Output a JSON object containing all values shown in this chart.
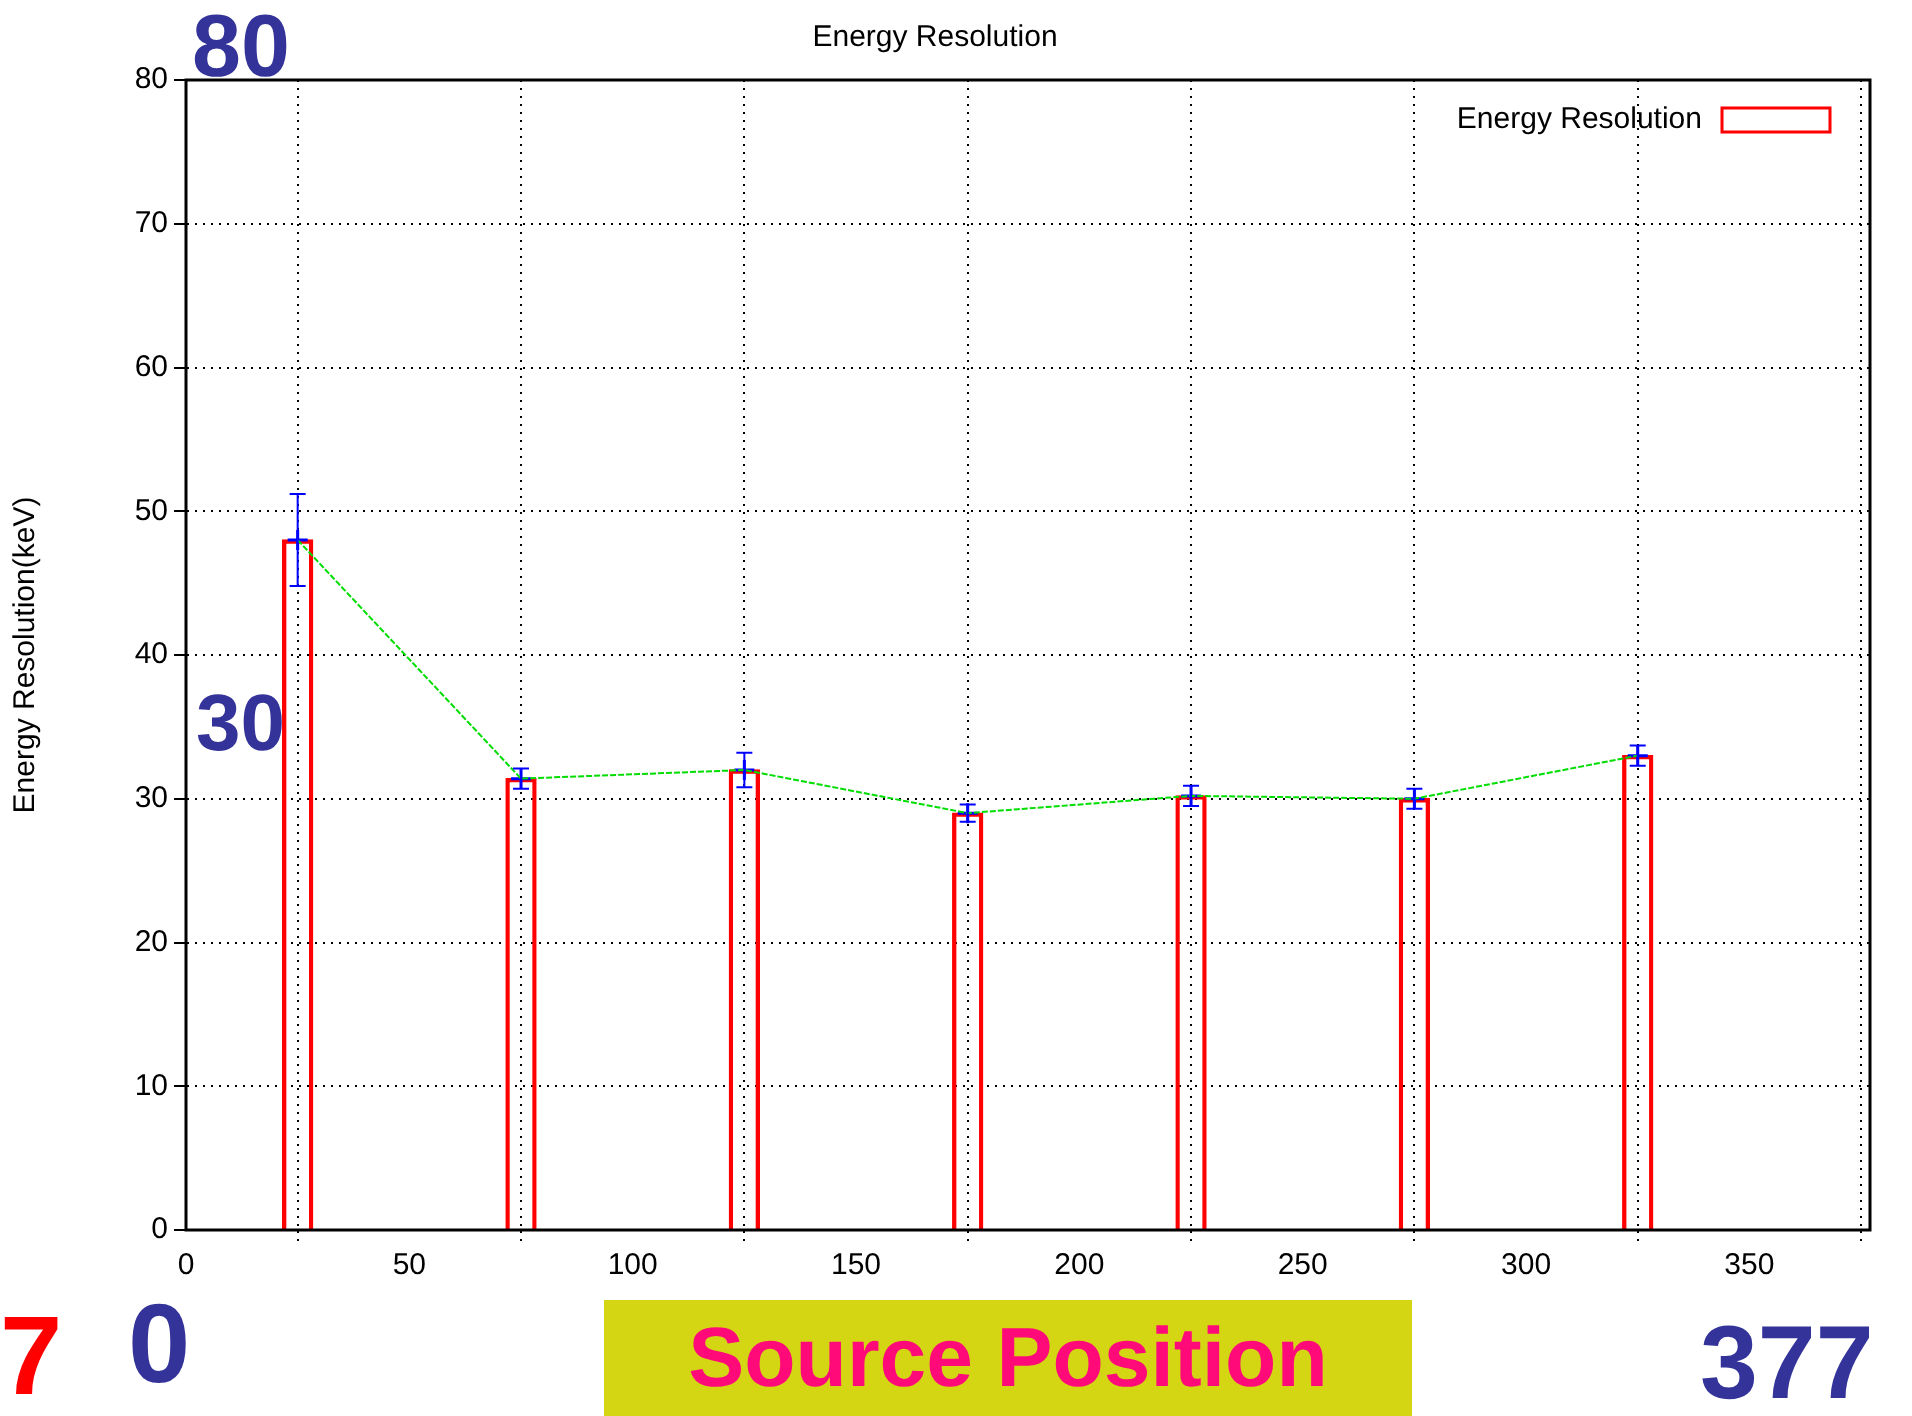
{
  "chart_data": {
    "type": "bar",
    "title": "Energy Resolution",
    "xlabel": "Source Position",
    "ylabel": "Energy Resolution(keV)",
    "x": [
      25,
      75,
      125,
      175,
      225,
      275,
      325
    ],
    "series": [
      {
        "name": "Energy Resolution",
        "color": "#ff0000",
        "values": [
          48,
          31.4,
          32,
          29,
          30.2,
          30,
          33
        ]
      },
      {
        "type": "line",
        "color": "#00dd00",
        "line_style": "dashed",
        "values": [
          48,
          31.4,
          32,
          29,
          30.2,
          30,
          33
        ]
      },
      {
        "type": "scatter",
        "color": "#0000ff",
        "marker": "cross",
        "values": [
          48,
          31.4,
          32,
          29,
          30.2,
          30,
          33
        ],
        "errors": [
          3.2,
          0.7,
          1.2,
          0.6,
          0.7,
          0.7,
          0.7
        ]
      }
    ],
    "xlim": [
      0,
      377
    ],
    "xticks": [
      0,
      50,
      100,
      150,
      200,
      250,
      300,
      350
    ],
    "ylim": [
      0,
      80
    ],
    "yticks": [
      0,
      10,
      20,
      30,
      40,
      50,
      60,
      70,
      80
    ],
    "grid": true,
    "legend": "top right",
    "annotations": [
      "80",
      "30",
      "7",
      "0",
      "377"
    ]
  }
}
